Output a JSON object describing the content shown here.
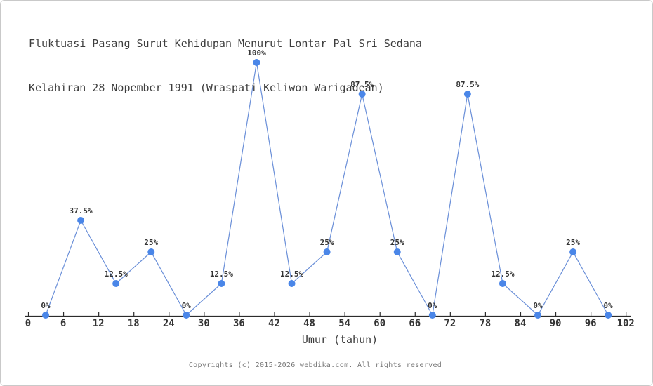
{
  "header": {
    "title_line1": "Fluktuasi Pasang Surut Kehidupan Menurut Lontar Pal Sri Sedana",
    "title_line2": "Kelahiran 28 Nopember 1991 (Wraspati Keliwon Warigadean)"
  },
  "chart_data": {
    "type": "line",
    "title": "Fluktuasi Pasang Surut Kehidupan Menurut Lontar Pal Sri Sedana Kelahiran 28 Nopember 1991 (Wraspati Keliwon Warigadean)",
    "xlabel": "Umur (tahun)",
    "ylabel": "",
    "x": [
      3,
      9,
      15,
      21,
      27,
      33,
      39,
      45,
      51,
      57,
      63,
      69,
      75,
      81,
      87,
      93,
      99
    ],
    "values": [
      0,
      37.5,
      12.5,
      25,
      0,
      12.5,
      100,
      12.5,
      25,
      87.5,
      25,
      0,
      87.5,
      12.5,
      0,
      25,
      0
    ],
    "point_labels": [
      "0%",
      "37.5%",
      "12.5%",
      "25%",
      "0%",
      "12.5%",
      "100%",
      "12.5%",
      "25%",
      "87.5%",
      "25%",
      "0%",
      "87.5%",
      "12.5%",
      "0%",
      "25%",
      "0%"
    ],
    "x_ticks": [
      0,
      6,
      12,
      18,
      24,
      30,
      36,
      42,
      48,
      54,
      60,
      66,
      72,
      78,
      84,
      90,
      96,
      102
    ],
    "xlim": [
      0,
      102
    ],
    "ylim": [
      0,
      100
    ],
    "grid": false,
    "legend": "none",
    "colors": {
      "marker": "#4a86e8",
      "line": "#6a8fd8",
      "axis": "#2b2b2b",
      "label": "#333333"
    }
  },
  "footer": {
    "text": "Copyrights (c) 2015-2026 webdika.com. All rights reserved"
  }
}
